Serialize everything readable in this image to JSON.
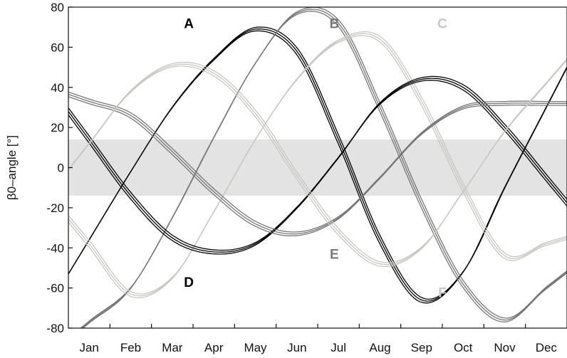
{
  "chart_data": {
    "type": "line",
    "title": "",
    "xlabel": "",
    "ylabel": "β0–angle [°]",
    "ylim": [
      -80,
      80
    ],
    "yticks": [
      -80,
      -60,
      -40,
      -20,
      0,
      20,
      40,
      60,
      80
    ],
    "months": [
      "Jan",
      "Feb",
      "Mar",
      "Apr",
      "May",
      "Jun",
      "Jul",
      "Aug",
      "Sep",
      "Oct",
      "Nov",
      "Dec"
    ],
    "grid": false,
    "band": {
      "from": -14,
      "to": 14,
      "color": "#e3e3e3"
    },
    "series": [
      {
        "name": "A",
        "color": "#000000",
        "label_value": 72,
        "label_month_index": 2.9,
        "points": [
          [
            0,
            -36
          ],
          [
            1,
            -2
          ],
          [
            2,
            30
          ],
          [
            3,
            54
          ],
          [
            4,
            69
          ],
          [
            5,
            58
          ],
          [
            6,
            14
          ],
          [
            7,
            -36
          ],
          [
            8,
            -66
          ],
          [
            9,
            -52
          ],
          [
            10,
            -10
          ],
          [
            11,
            30
          ]
        ]
      },
      {
        "name": "B",
        "color": "#777777",
        "label_value": 72,
        "label_month_index": 6.4,
        "points": [
          [
            0,
            -77
          ],
          [
            1,
            -60
          ],
          [
            2,
            -25
          ],
          [
            3,
            15
          ],
          [
            4,
            52
          ],
          [
            5,
            77
          ],
          [
            6,
            72
          ],
          [
            7,
            30
          ],
          [
            8,
            -18
          ],
          [
            9,
            -58
          ],
          [
            10,
            -76
          ],
          [
            11,
            -60
          ]
        ]
      },
      {
        "name": "C",
        "color": "#c8c8c3",
        "label_value": 72,
        "label_month_index": 9.0,
        "points": [
          [
            0,
            -38
          ],
          [
            1,
            -63
          ],
          [
            2,
            -55
          ],
          [
            3,
            -22
          ],
          [
            4,
            14
          ],
          [
            5,
            44
          ],
          [
            6,
            63
          ],
          [
            7,
            64
          ],
          [
            8,
            33
          ],
          [
            9,
            -10
          ],
          [
            10,
            -44
          ],
          [
            11,
            -38
          ]
        ]
      },
      {
        "name": "D",
        "color": "#000000",
        "label_value": -57,
        "label_month_index": 2.9,
        "points": [
          [
            0,
            14
          ],
          [
            1,
            -14
          ],
          [
            2,
            -35
          ],
          [
            3,
            -42
          ],
          [
            4,
            -38
          ],
          [
            5,
            -20
          ],
          [
            6,
            5
          ],
          [
            7,
            32
          ],
          [
            8,
            44
          ],
          [
            9,
            40
          ],
          [
            10,
            20
          ],
          [
            11,
            -5
          ]
        ]
      },
      {
        "name": "E",
        "color": "#777777",
        "label_value": -43,
        "label_month_index": 6.4,
        "points": [
          [
            0,
            33
          ],
          [
            1,
            26
          ],
          [
            2,
            8
          ],
          [
            3,
            -12
          ],
          [
            4,
            -28
          ],
          [
            5,
            -33
          ],
          [
            6,
            -25
          ],
          [
            7,
            -5
          ],
          [
            8,
            17
          ],
          [
            9,
            30
          ],
          [
            10,
            32
          ],
          [
            11,
            32
          ]
        ]
      },
      {
        "name": "F",
        "color": "#c8c8c3",
        "label_value": -62,
        "label_month_index": 9.0,
        "points": [
          [
            0,
            12
          ],
          [
            1,
            38
          ],
          [
            2,
            51
          ],
          [
            3,
            47
          ],
          [
            4,
            27
          ],
          [
            5,
            -4
          ],
          [
            6,
            -32
          ],
          [
            7,
            -48
          ],
          [
            8,
            -40
          ],
          [
            9,
            -12
          ],
          [
            10,
            18
          ],
          [
            11,
            42
          ]
        ]
      }
    ]
  }
}
